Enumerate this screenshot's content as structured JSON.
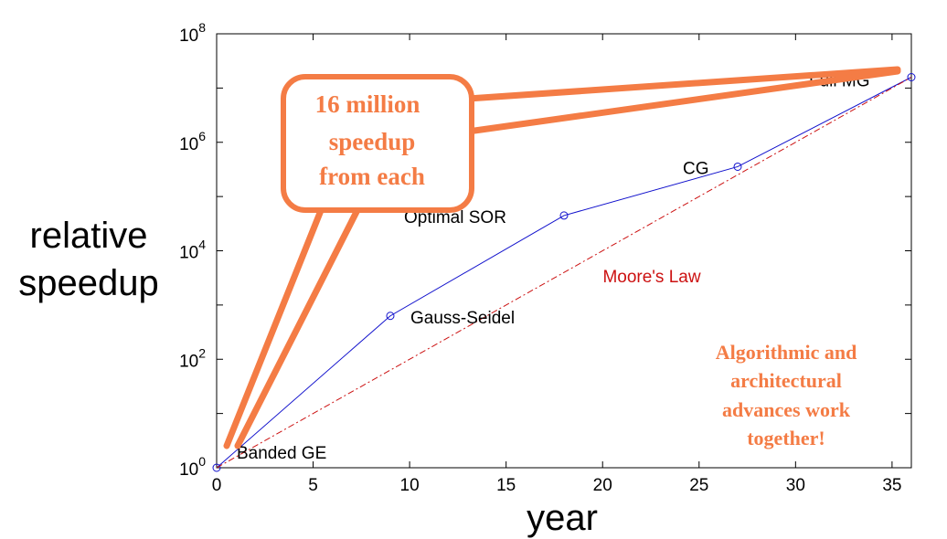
{
  "chart_data": {
    "type": "line",
    "xlabel": "year",
    "ylabel": [
      "relative",
      "speedup"
    ],
    "xlim": [
      0,
      36
    ],
    "ylim_exponent": [
      0,
      8
    ],
    "yscale": "log",
    "x_ticks": [
      "0",
      "5",
      "10",
      "15",
      "20",
      "25",
      "30",
      "35"
    ],
    "y_tick_base": "10",
    "y_tick_exponents": [
      "0",
      "2",
      "4",
      "6",
      "8"
    ],
    "grid": false,
    "series": [
      {
        "name": "",
        "color": "#1010cc",
        "style": "solid",
        "markers": "circle",
        "points": [
          {
            "x": 0,
            "y_exp": 0,
            "label": "Banded GE"
          },
          {
            "x": 9,
            "y_exp": 2.8,
            "label": "Gauss-Seidel"
          },
          {
            "x": 18,
            "y_exp": 4.65,
            "label": "Optimal SOR"
          },
          {
            "x": 27,
            "y_exp": 5.55,
            "label": "CG"
          },
          {
            "x": 36,
            "y_exp": 7.2,
            "label": "Full MG"
          }
        ]
      },
      {
        "name": "Moore's Law",
        "color": "#cc1111",
        "style": "dashdot",
        "points": [
          {
            "x": 0,
            "y_exp": 0
          },
          {
            "x": 36,
            "y_exp": 7.2
          }
        ]
      }
    ],
    "annotations": {
      "moores_law_label": "Moore's Law",
      "callout_lines": [
        "16 million",
        "speedup",
        "from each"
      ],
      "note_lines": [
        "Algorithmic and",
        "architectural",
        "advances work",
        "together!"
      ],
      "accent_color": "#f47c45"
    }
  }
}
